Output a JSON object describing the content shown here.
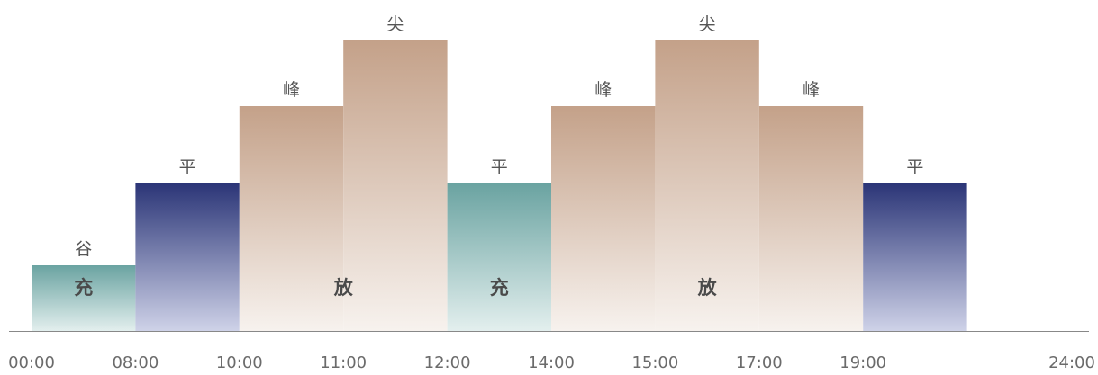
{
  "chart_data": {
    "type": "bar",
    "x_ticks": [
      "00:00",
      "08:00",
      "10:00",
      "11:00",
      "12:00",
      "14:00",
      "15:00",
      "17:00",
      "19:00",
      "24:00"
    ],
    "segments": [
      {
        "start": 0,
        "end": 1,
        "level": 1,
        "tier": "谷",
        "action": "充",
        "style": "teal"
      },
      {
        "start": 1,
        "end": 2,
        "level": 2,
        "tier": "平",
        "action": "",
        "style": "navy"
      },
      {
        "start": 2,
        "end": 3,
        "level": 3,
        "tier": "峰",
        "action": "",
        "style": "tan"
      },
      {
        "start": 3,
        "end": 4,
        "level": 4,
        "tier": "尖",
        "action": "",
        "style": "tan"
      },
      {
        "start": 4,
        "end": 5,
        "level": 2,
        "tier": "平",
        "action": "充",
        "style": "teal"
      },
      {
        "start": 5,
        "end": 6,
        "level": 3,
        "tier": "峰",
        "action": "",
        "style": "tan"
      },
      {
        "start": 6,
        "end": 7,
        "level": 4,
        "tier": "尖",
        "action": "",
        "style": "tan"
      },
      {
        "start": 7,
        "end": 8,
        "level": 3,
        "tier": "峰",
        "action": "",
        "style": "tan"
      },
      {
        "start": 8,
        "end": 9,
        "level": 2,
        "tier": "平",
        "action": "",
        "style": "navy"
      }
    ],
    "action_labels": [
      {
        "text": "放",
        "start": 2,
        "end": 4
      },
      {
        "text": "放",
        "start": 5,
        "end": 8
      }
    ],
    "colors": {
      "teal_top": "#6aa3a1",
      "teal_bottom": "#e3efee",
      "navy_top": "#2b3577",
      "navy_bottom": "#ced2e8",
      "tan_top": "#c4a189",
      "tan_bottom": "#f7f2ee",
      "axis": "#888888"
    }
  }
}
